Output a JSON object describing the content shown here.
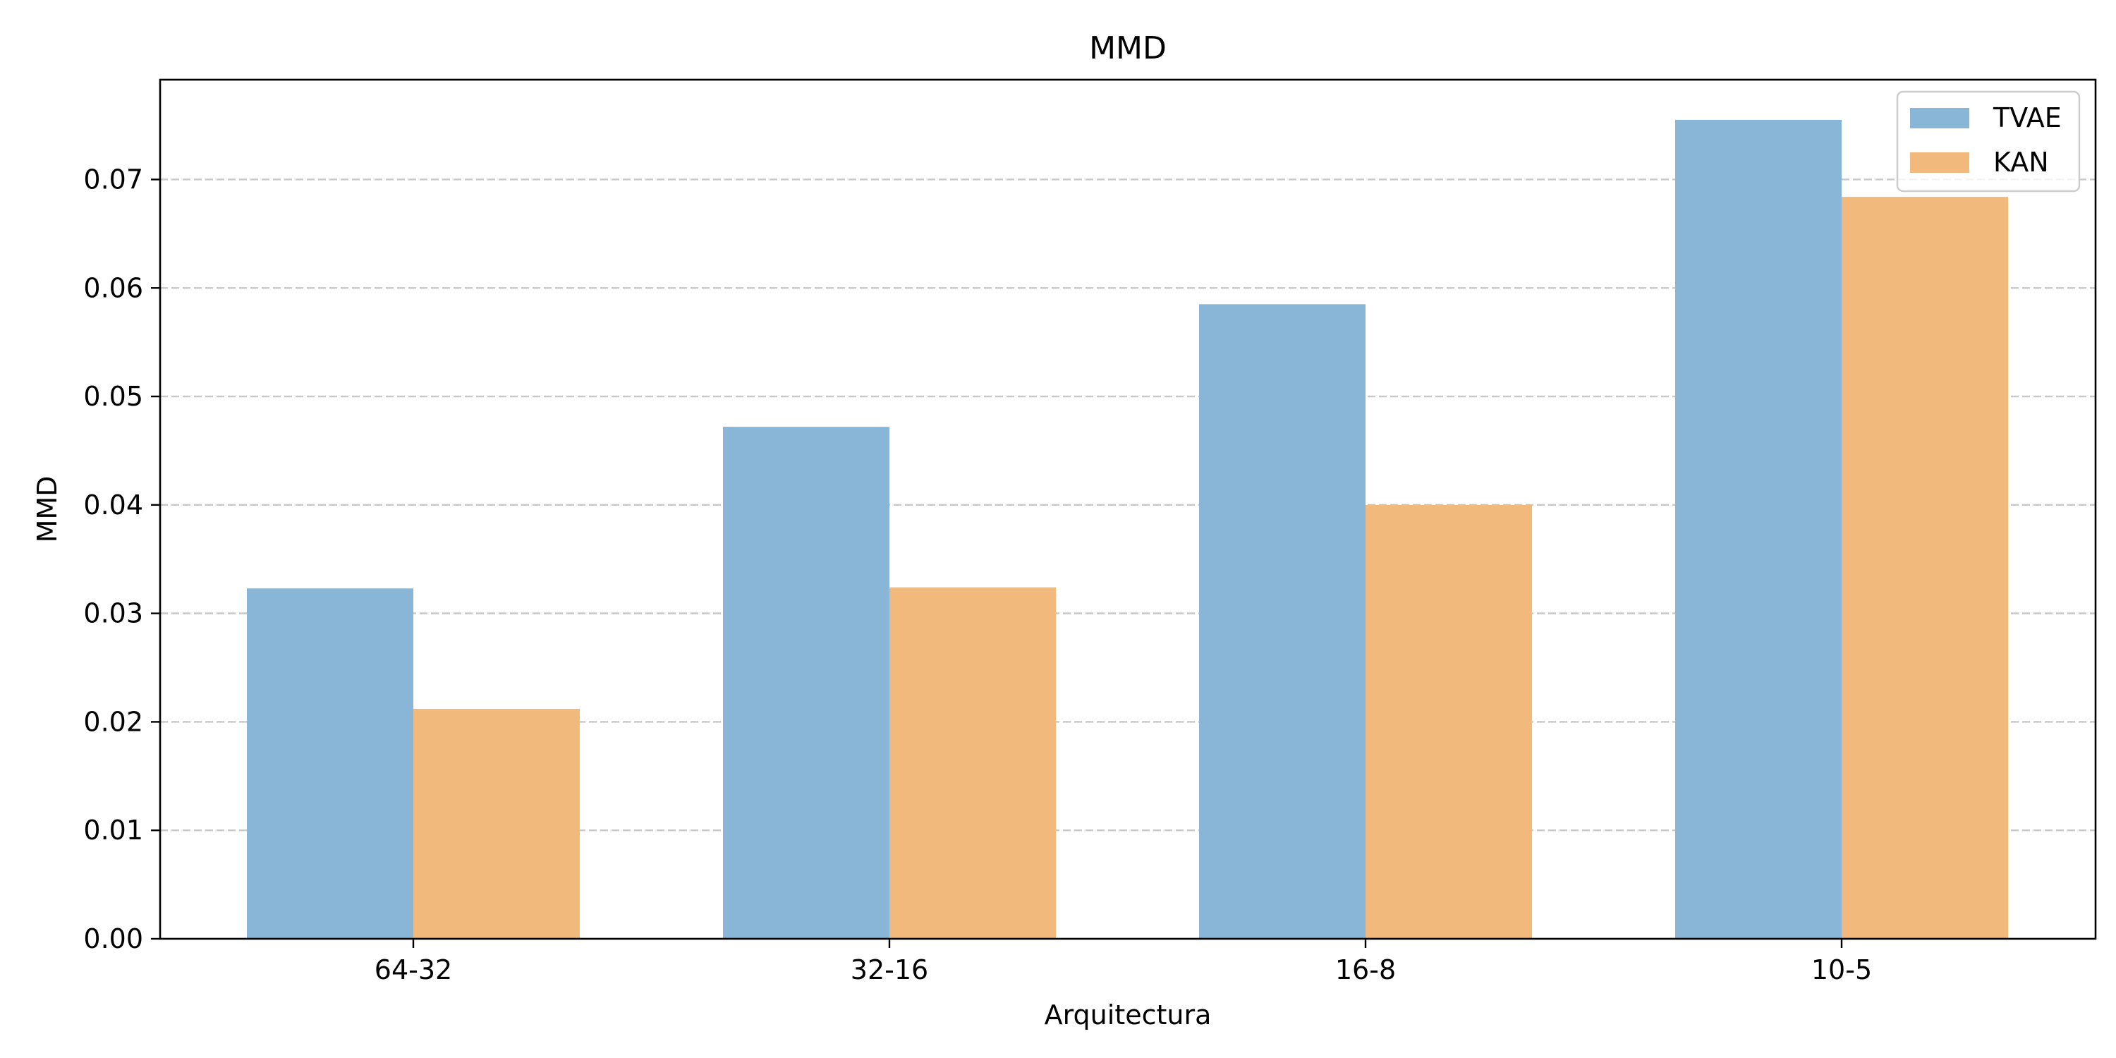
{
  "chart_data": {
    "type": "bar",
    "title": "MMD",
    "xlabel": "Arquitectura",
    "ylabel": "MMD",
    "categories": [
      "64-32",
      "32-16",
      "16-8",
      "10-5"
    ],
    "series": [
      {
        "name": "TVAE",
        "values": [
          0.0323,
          0.0472,
          0.0585,
          0.0755
        ],
        "color": "#89b5d6"
      },
      {
        "name": "KAN",
        "values": [
          0.0212,
          0.0324,
          0.04,
          0.0684
        ],
        "color": "#f1b97c"
      }
    ],
    "ylim": [
      0,
      0.0792
    ],
    "yticks": [
      "0.00",
      "0.01",
      "0.02",
      "0.03",
      "0.04",
      "0.05",
      "0.06",
      "0.07"
    ],
    "grid": "y-dashed",
    "legend_position": "top-right"
  }
}
